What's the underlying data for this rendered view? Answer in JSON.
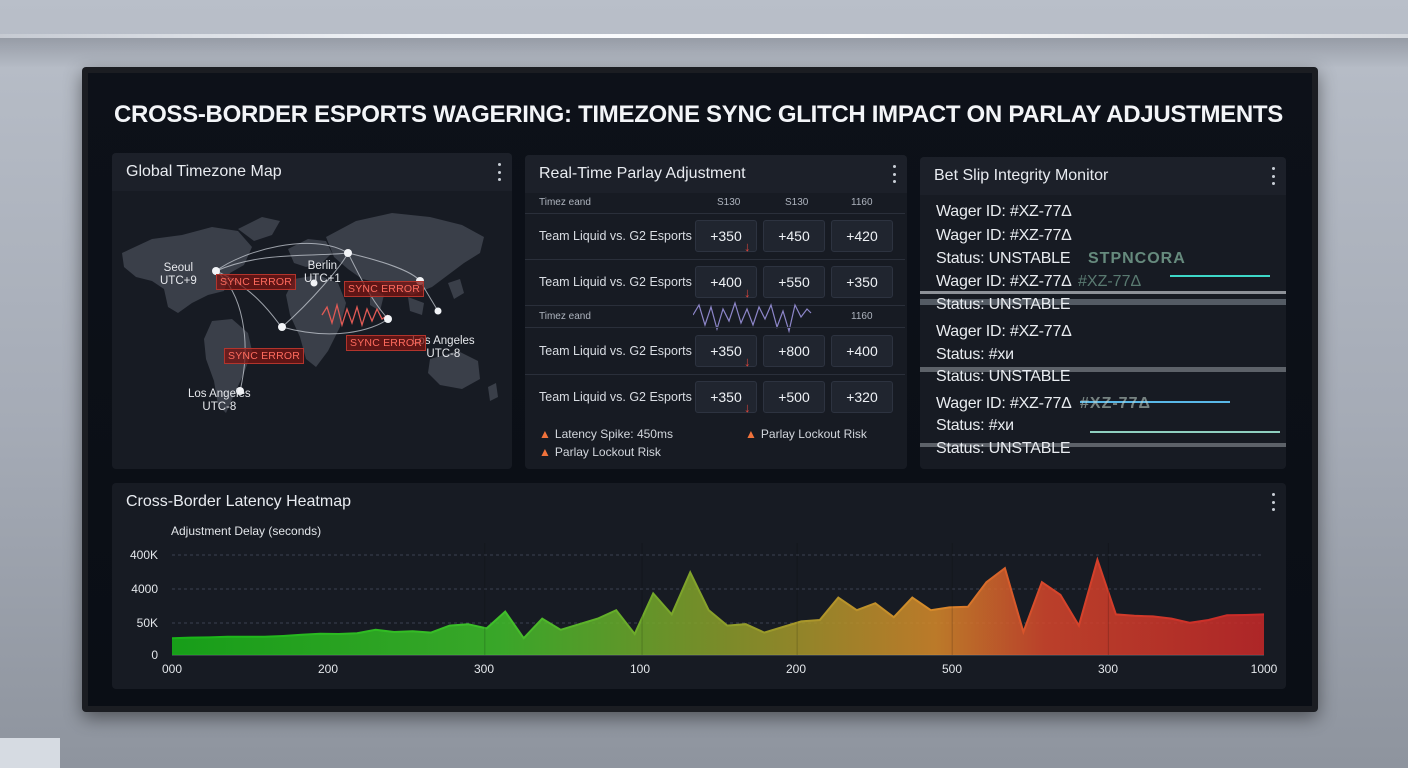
{
  "title": "CROSS-BORDER ESPORTS WAGERING: TIMEZONE SYNC GLITCH IMPACT ON PARLAY ADJUSTMENTS",
  "map_panel": {
    "title": "Global Timezone Map",
    "cities": [
      {
        "name": "Seoul",
        "tz": "UTC+9"
      },
      {
        "name": "Berlin",
        "tz": "UTC+1"
      },
      {
        "name": "Los Angeles",
        "tz": "UTC-8"
      },
      {
        "name": "Los Angeles",
        "tz": "UTC-8"
      }
    ],
    "badges": [
      "SYNC ERROR",
      "SYNC ERROR",
      "SYNC ERROR",
      "SYNC ERROR"
    ],
    "colors": {
      "error": "#ff6b5e",
      "land": "#3a3f49"
    }
  },
  "parlay_panel": {
    "title": "Real-Time Parlay Adjustment",
    "header1": {
      "label": "Timez eand",
      "cols": [
        "S130",
        "S130",
        "1160"
      ]
    },
    "header2": {
      "label": "Timez eand",
      "cols": [
        "",
        "",
        "1160"
      ]
    },
    "rows": [
      {
        "match": "Team Liquid vs. G2 Esports",
        "odds": [
          "+350",
          "+450",
          "+420"
        ]
      },
      {
        "match": "Team Liquid vs. G2 Esports",
        "odds": [
          "+400",
          "+550",
          "+350"
        ]
      },
      {
        "match": "Team Liquid vs. G2 Esports",
        "odds": [
          "+350",
          "+800",
          "+400"
        ]
      },
      {
        "match": "Team Liquid vs. G2 Esports",
        "odds": [
          "+350",
          "+500",
          "+320"
        ]
      }
    ],
    "warnings": [
      "Latency Spike: 450ms",
      "Parlay Lockout Risk",
      "Parlay Lockout Risk"
    ]
  },
  "integrity_panel": {
    "title": "Bet Slip Integrity Monitor",
    "lines": [
      "Wager ID: #XZ-77Δ",
      "Wager ID: #XZ-77Δ",
      "Status: UNSTABLE",
      "Wager ID: #XZ-77Δ",
      "Status: UNSTABLE",
      "Wager ID: #XZ-77Δ",
      "Status: #хи",
      "Status: UNSTABLE",
      "Wager ID: #XZ-77Δ",
      "Status: #хи",
      "Status: UNSTABLE"
    ],
    "glitch_fragments": [
      "#XZ-77Δ",
      "STPNCORA",
      "#XZ-77Δ"
    ]
  },
  "heatmap_panel": {
    "title": "Cross-Border Latency Heatmap"
  },
  "chart_data": {
    "type": "area",
    "title": "",
    "ylabel": "Adjustment Delay (seconds)",
    "xlabel": "",
    "y_ticks": [
      "0",
      "50K",
      "4000",
      "400K"
    ],
    "x_ticks": [
      "000",
      "200",
      "300",
      "100",
      "200",
      "500",
      "300",
      "1000"
    ],
    "grid": true,
    "ylim": [
      0,
      4
    ],
    "series": [
      {
        "values": [
          0.6,
          0.62,
          0.63,
          0.65,
          0.65,
          0.65,
          0.68,
          0.72,
          0.76,
          0.75,
          0.78,
          0.9,
          0.82,
          0.85,
          0.8,
          1.05,
          1.1,
          0.95,
          1.55,
          0.6,
          1.3,
          0.9,
          1.1,
          1.3,
          1.6,
          0.75,
          2.2,
          1.45,
          2.95,
          1.6,
          1.05,
          1.1,
          0.8,
          1.0,
          1.2,
          1.25,
          2.05,
          1.6,
          1.85,
          1.35,
          2.05,
          1.6,
          1.7,
          1.72,
          2.6,
          3.1,
          0.82,
          2.6,
          2.15,
          1.05,
          3.4,
          1.45,
          1.4,
          1.38,
          1.3,
          1.15,
          1.25,
          1.42,
          1.43,
          1.45
        ],
        "colors": [
          "#17b517",
          "#3fbf2a",
          "#8fbf2a",
          "#d88a2a",
          "#d7462b",
          "#c82828"
        ]
      }
    ]
  }
}
